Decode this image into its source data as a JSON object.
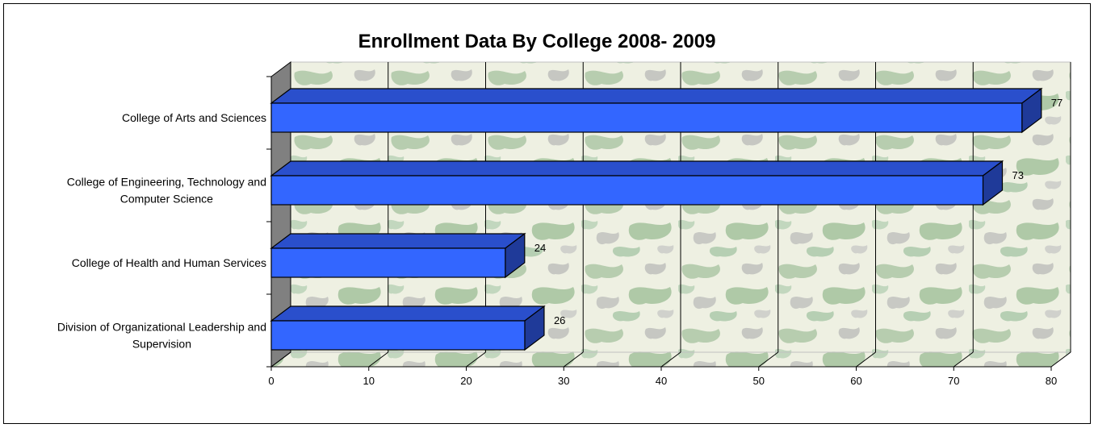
{
  "chart_data": {
    "type": "bar",
    "orientation": "horizontal",
    "style": "3d",
    "title": "Enrollment Data By College 2008- 2009",
    "xlabel": "",
    "ylabel": "",
    "categories": [
      "College of Arts and Sciences",
      "College of Engineering, Technology and Computer Science",
      "College of Health and Human Services",
      "Division of Organizational Leadership and Supervision"
    ],
    "category_lines": [
      [
        "College of Arts and Sciences"
      ],
      [
        "College of Engineering, Technology and",
        "Computer Science"
      ],
      [
        "College of Health and Human Services"
      ],
      [
        "Division of Organizational Leadership and",
        "Supervision"
      ]
    ],
    "values": [
      77,
      73,
      24,
      26
    ],
    "data_labels": [
      "77",
      "73",
      "24",
      "26"
    ],
    "xlim": [
      0,
      80
    ],
    "xticks": [
      0,
      10,
      20,
      30,
      40,
      50,
      60,
      70,
      80
    ],
    "xtick_labels": [
      "0",
      "10",
      "20",
      "30",
      "40",
      "50",
      "60",
      "70",
      "80"
    ],
    "grid": true,
    "legend": "none",
    "colors": {
      "bar_front": "#3366ff",
      "bar_top": "#2a4fcc",
      "bar_side": "#1f3a99",
      "back_wall": "#eef0e2",
      "side_wall": "#808080",
      "floor": "#c8d8c0",
      "grid": "#000000"
    }
  }
}
